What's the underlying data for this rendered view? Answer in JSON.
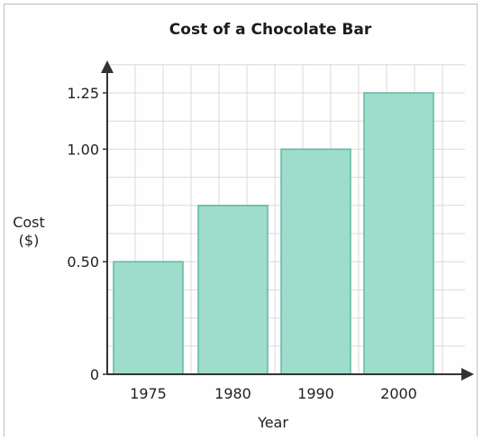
{
  "chart_data": {
    "type": "bar",
    "title": "Cost of a Chocolate Bar",
    "xlabel": "Year",
    "ylabel_lines": [
      "Cost",
      "($)"
    ],
    "categories": [
      "1975",
      "1980",
      "1990",
      "2000"
    ],
    "values": [
      0.5,
      0.75,
      1.0,
      1.25
    ],
    "yticks": [
      {
        "value": 0,
        "label": "0"
      },
      {
        "value": 0.5,
        "label": "0.50"
      },
      {
        "value": 1.0,
        "label": "1.00"
      },
      {
        "value": 1.25,
        "label": "1.25"
      }
    ],
    "ylim": [
      0,
      1.25
    ],
    "grid": true,
    "bar_color": "#9edccb",
    "bar_edge_color": "#5fb9a3",
    "grid_color": "#d9d9d9"
  }
}
